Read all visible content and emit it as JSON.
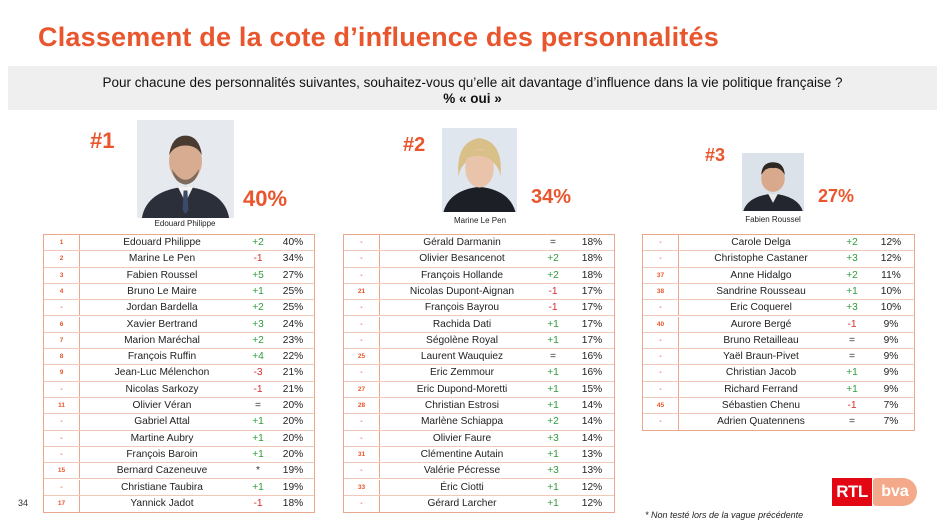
{
  "title": "Classement de la cote d’influence des personnalités",
  "question": "Pour chacune des personnalités suivantes, souhaitez-vous qu’elle ait davantage d’influence dans la vie politique française ?",
  "subquestion": "% « oui »",
  "podium": [
    {
      "rank": "#1",
      "name": "Edouard Philippe",
      "pct": "40%"
    },
    {
      "rank": "#2",
      "name": "Marine Le Pen",
      "pct": "34%"
    },
    {
      "rank": "#3",
      "name": "Fabien Roussel",
      "pct": "27%"
    }
  ],
  "colors": {
    "accent": "#e9552c",
    "plus": "#2e9b3b",
    "minus": "#d92b2b"
  },
  "tables": [
    {
      "rows": [
        {
          "prev": "1",
          "name": "Edouard Philippe",
          "evo": "+2",
          "val": "40%"
        },
        {
          "prev": "2",
          "name": "Marine Le Pen",
          "evo": "-1",
          "val": "34%"
        },
        {
          "prev": "3",
          "name": "Fabien Roussel",
          "evo": "+5",
          "val": "27%"
        },
        {
          "prev": "4",
          "name": "Bruno Le Maire",
          "evo": "+1",
          "val": "25%"
        },
        {
          "prev": "-",
          "name": "Jordan Bardella",
          "evo": "+2",
          "val": "25%"
        },
        {
          "prev": "6",
          "name": "Xavier Bertrand",
          "evo": "+3",
          "val": "24%"
        },
        {
          "prev": "7",
          "name": "Marion Maréchal",
          "evo": "+2",
          "val": "23%"
        },
        {
          "prev": "8",
          "name": "François Ruffin",
          "evo": "+4",
          "val": "22%"
        },
        {
          "prev": "9",
          "name": "Jean-Luc Mélenchon",
          "evo": "-3",
          "val": "21%"
        },
        {
          "prev": "-",
          "name": "Nicolas Sarkozy",
          "evo": "-1",
          "val": "21%"
        },
        {
          "prev": "11",
          "name": "Olivier Véran",
          "evo": "=",
          "val": "20%"
        },
        {
          "prev": "-",
          "name": "Gabriel Attal",
          "evo": "+1",
          "val": "20%"
        },
        {
          "prev": "-",
          "name": "Martine Aubry",
          "evo": "+1",
          "val": "20%"
        },
        {
          "prev": "-",
          "name": "François Baroin",
          "evo": "+1",
          "val": "20%"
        },
        {
          "prev": "15",
          "name": "Bernard Cazeneuve",
          "evo": "*",
          "val": "19%"
        },
        {
          "prev": "-",
          "name": "Christiane Taubira",
          "evo": "+1",
          "val": "19%"
        },
        {
          "prev": "17",
          "name": "Yannick Jadot",
          "evo": "-1",
          "val": "18%"
        }
      ]
    },
    {
      "rows": [
        {
          "prev": "-",
          "name": "Gérald Darmanin",
          "evo": "=",
          "val": "18%"
        },
        {
          "prev": "-",
          "name": "Olivier Besancenot",
          "evo": "+2",
          "val": "18%"
        },
        {
          "prev": "-",
          "name": "François Hollande",
          "evo": "+2",
          "val": "18%"
        },
        {
          "prev": "21",
          "name": "Nicolas Dupont-Aignan",
          "evo": "-1",
          "val": "17%"
        },
        {
          "prev": "-",
          "name": "François Bayrou",
          "evo": "-1",
          "val": "17%"
        },
        {
          "prev": "-",
          "name": "Rachida Dati",
          "evo": "+1",
          "val": "17%"
        },
        {
          "prev": "-",
          "name": "Ségolène Royal",
          "evo": "+1",
          "val": "17%"
        },
        {
          "prev": "25",
          "name": "Laurent Wauquiez",
          "evo": "=",
          "val": "16%"
        },
        {
          "prev": "-",
          "name": "Eric Zemmour",
          "evo": "+1",
          "val": "16%"
        },
        {
          "prev": "27",
          "name": "Eric Dupond-Moretti",
          "evo": "+1",
          "val": "15%"
        },
        {
          "prev": "28",
          "name": "Christian Estrosi",
          "evo": "+1",
          "val": "14%"
        },
        {
          "prev": "-",
          "name": "Marlène Schiappa",
          "evo": "+2",
          "val": "14%"
        },
        {
          "prev": "-",
          "name": "Olivier Faure",
          "evo": "+3",
          "val": "14%"
        },
        {
          "prev": "31",
          "name": "Clémentine Autain",
          "evo": "+1",
          "val": "13%"
        },
        {
          "prev": "-",
          "name": "Valérie Pécresse",
          "evo": "+3",
          "val": "13%"
        },
        {
          "prev": "33",
          "name": "Éric Ciotti",
          "evo": "+1",
          "val": "12%"
        },
        {
          "prev": "-",
          "name": "Gérard Larcher",
          "evo": "+1",
          "val": "12%"
        }
      ]
    },
    {
      "rows": [
        {
          "prev": "-",
          "name": "Carole Delga",
          "evo": "+2",
          "val": "12%"
        },
        {
          "prev": "-",
          "name": "Christophe Castaner",
          "evo": "+3",
          "val": "12%"
        },
        {
          "prev": "37",
          "name": "Anne Hidalgo",
          "evo": "+2",
          "val": "11%"
        },
        {
          "prev": "38",
          "name": "Sandrine Rousseau",
          "evo": "+1",
          "val": "10%"
        },
        {
          "prev": "-",
          "name": "Eric Coquerel",
          "evo": "+3",
          "val": "10%"
        },
        {
          "prev": "40",
          "name": "Aurore Bergé",
          "evo": "-1",
          "val": "9%"
        },
        {
          "prev": "-",
          "name": "Bruno Retailleau",
          "evo": "=",
          "val": "9%"
        },
        {
          "prev": "-",
          "name": "Yaël Braun-Pivet",
          "evo": "=",
          "val": "9%"
        },
        {
          "prev": "-",
          "name": "Christian Jacob",
          "evo": "+1",
          "val": "9%"
        },
        {
          "prev": "-",
          "name": "Richard Ferrand",
          "evo": "+1",
          "val": "9%"
        },
        {
          "prev": "45",
          "name": "Sébastien Chenu",
          "evo": "-1",
          "val": "7%"
        },
        {
          "prev": "-",
          "name": "Adrien Quatennens",
          "evo": "=",
          "val": "7%"
        }
      ]
    }
  ],
  "page_number": "34",
  "footnote": "* Non testé lors de la vague précédente",
  "logos": {
    "rtl": "RTL",
    "bva": "bva"
  }
}
